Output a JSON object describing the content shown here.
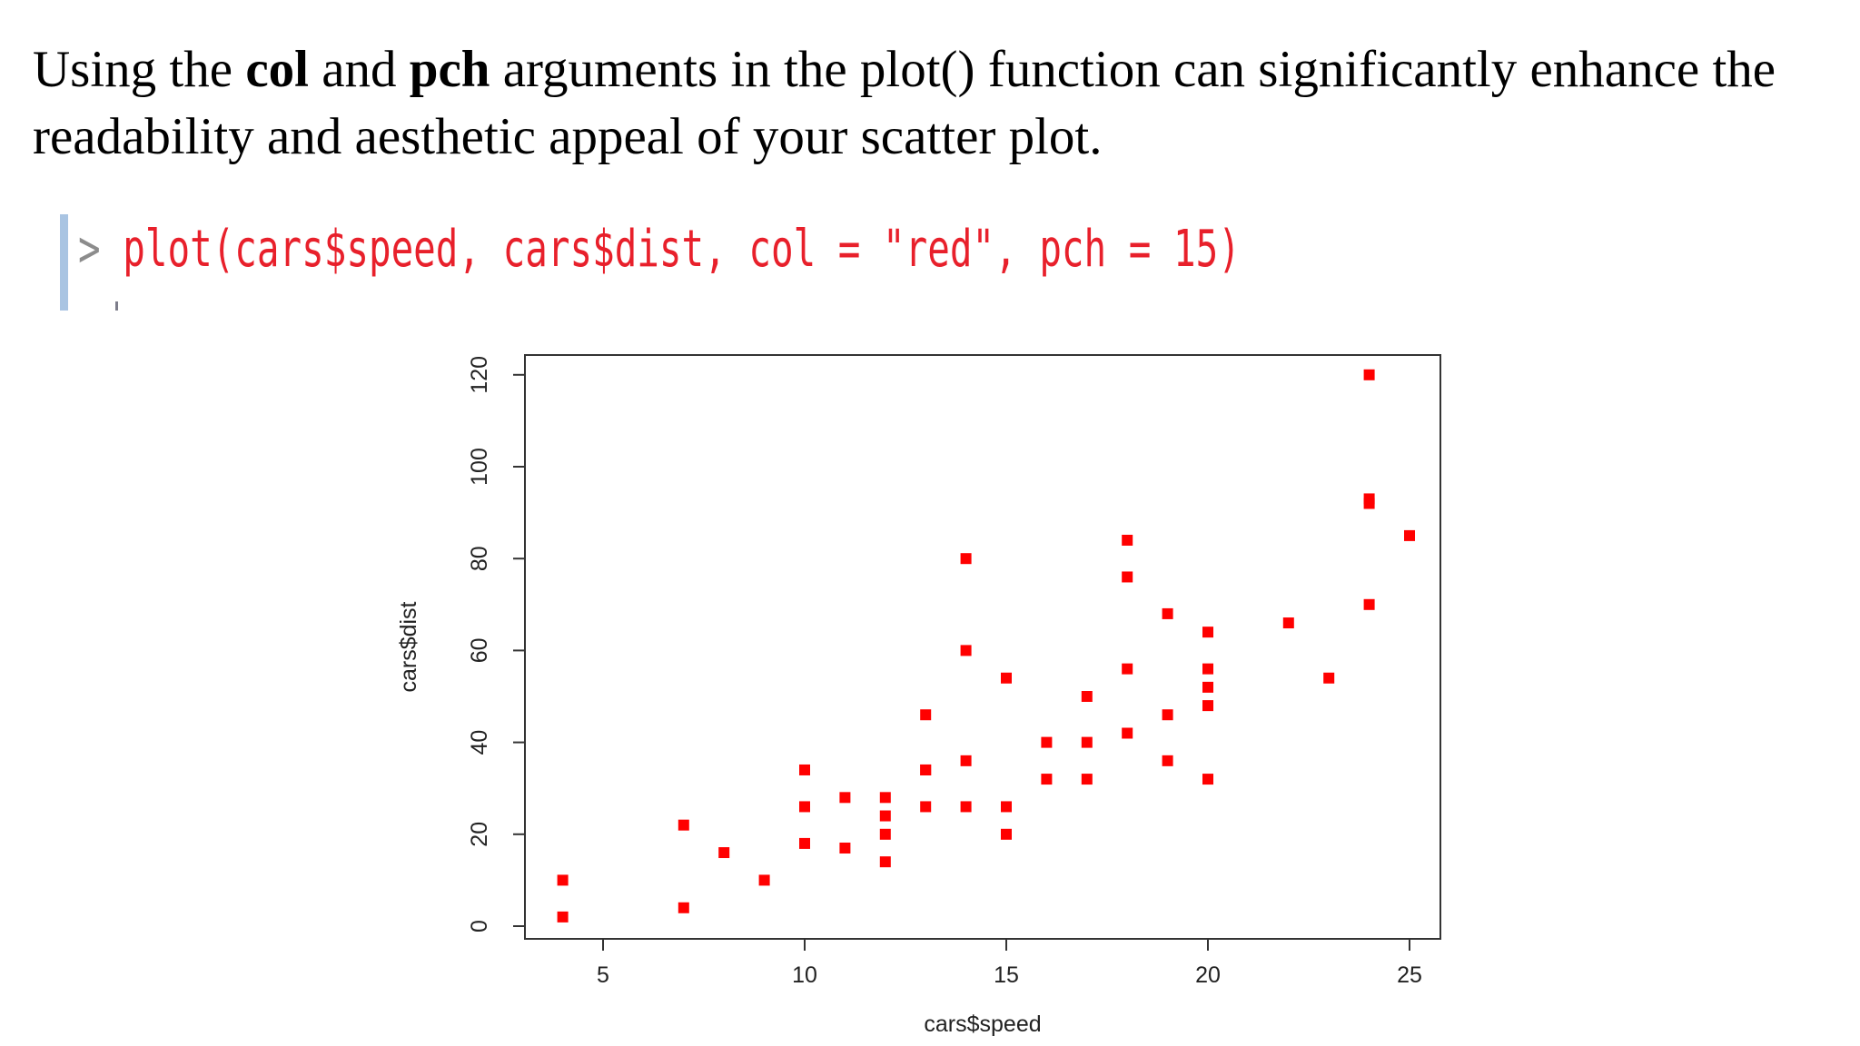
{
  "intro": {
    "part1": "Using the ",
    "bold1": "col",
    "part2": " and ",
    "bold2": "pch",
    "part3": " arguments in the plot() function can significantly enhance the readability and aesthetic appeal of your scatter plot."
  },
  "code": {
    "prompt": ">",
    "command": "plot(cars$speed, cars$dist, col = \"red\", pch = 15)"
  },
  "chart_data": {
    "type": "scatter",
    "title": "",
    "xlabel": "cars$speed",
    "ylabel": "cars$dist",
    "xlim": [
      4,
      25
    ],
    "ylim": [
      2,
      120
    ],
    "xticks": [
      5,
      10,
      15,
      20,
      25
    ],
    "yticks": [
      0,
      20,
      40,
      60,
      80,
      100,
      120
    ],
    "marker_color": "#ff0000",
    "marker": "filled-square",
    "grid": false,
    "points": [
      [
        4,
        2
      ],
      [
        4,
        10
      ],
      [
        7,
        4
      ],
      [
        7,
        22
      ],
      [
        8,
        16
      ],
      [
        9,
        10
      ],
      [
        10,
        18
      ],
      [
        10,
        26
      ],
      [
        10,
        34
      ],
      [
        11,
        17
      ],
      [
        11,
        28
      ],
      [
        12,
        14
      ],
      [
        12,
        20
      ],
      [
        12,
        24
      ],
      [
        12,
        28
      ],
      [
        13,
        26
      ],
      [
        13,
        34
      ],
      [
        13,
        34
      ],
      [
        13,
        46
      ],
      [
        14,
        26
      ],
      [
        14,
        36
      ],
      [
        14,
        60
      ],
      [
        14,
        80
      ],
      [
        15,
        20
      ],
      [
        15,
        26
      ],
      [
        15,
        54
      ],
      [
        16,
        32
      ],
      [
        16,
        40
      ],
      [
        17,
        32
      ],
      [
        17,
        40
      ],
      [
        17,
        50
      ],
      [
        18,
        42
      ],
      [
        18,
        56
      ],
      [
        18,
        76
      ],
      [
        18,
        84
      ],
      [
        19,
        36
      ],
      [
        19,
        46
      ],
      [
        19,
        68
      ],
      [
        20,
        32
      ],
      [
        20,
        48
      ],
      [
        20,
        52
      ],
      [
        20,
        56
      ],
      [
        20,
        64
      ],
      [
        22,
        66
      ],
      [
        23,
        54
      ],
      [
        24,
        70
      ],
      [
        24,
        92
      ],
      [
        24,
        93
      ],
      [
        24,
        120
      ],
      [
        25,
        85
      ]
    ]
  }
}
